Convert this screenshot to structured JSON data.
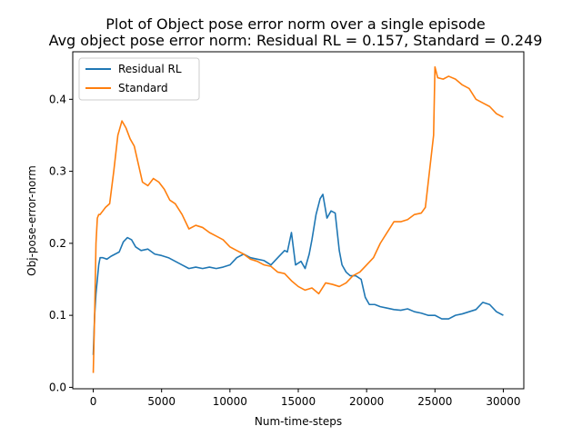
{
  "chart_data": {
    "type": "line",
    "title": "Plot of Object pose error norm over a single episode",
    "subtitle": "Avg object pose error norm: Residual RL = 0.157, Standard = 0.249",
    "xlabel": "Num-time-steps",
    "ylabel": "Obj-pose-error-norm",
    "xlim": [
      -1500,
      31500
    ],
    "ylim": [
      -0.002,
      0.466
    ],
    "xticks": [
      0,
      5000,
      10000,
      15000,
      20000,
      25000,
      30000
    ],
    "yticks": [
      0.0,
      0.1,
      0.2,
      0.3,
      0.4
    ],
    "ytick_labels": [
      "0.0",
      "0.1",
      "0.2",
      "0.3",
      "0.4"
    ],
    "grid": false,
    "legend_position": "top-left",
    "series": [
      {
        "name": "Residual RL",
        "color": "#1f77b4",
        "x": [
          0,
          100,
          200,
          300,
          400,
          500,
          700,
          1000,
          1300,
          1600,
          1900,
          2200,
          2500,
          2800,
          3100,
          3500,
          4000,
          4500,
          5000,
          5500,
          6000,
          6500,
          7000,
          7500,
          8000,
          8500,
          9000,
          9500,
          10000,
          10500,
          11000,
          11500,
          12000,
          12500,
          13000,
          13500,
          14000,
          14200,
          14500,
          14800,
          15200,
          15500,
          15800,
          16000,
          16300,
          16600,
          16800,
          17100,
          17400,
          17700,
          18000,
          18200,
          18500,
          18800,
          19200,
          19600,
          19900,
          20200,
          20600,
          21000,
          21500,
          22000,
          22500,
          23000,
          23500,
          24000,
          24500,
          25000,
          25500,
          26000,
          26500,
          27000,
          27500,
          28000,
          28500,
          29000,
          29500,
          30000
        ],
        "y": [
          0.045,
          0.1,
          0.13,
          0.15,
          0.17,
          0.18,
          0.18,
          0.178,
          0.182,
          0.185,
          0.188,
          0.202,
          0.208,
          0.205,
          0.195,
          0.19,
          0.192,
          0.185,
          0.183,
          0.18,
          0.175,
          0.17,
          0.165,
          0.167,
          0.165,
          0.167,
          0.165,
          0.167,
          0.17,
          0.18,
          0.185,
          0.18,
          0.178,
          0.176,
          0.17,
          0.18,
          0.19,
          0.188,
          0.215,
          0.17,
          0.175,
          0.165,
          0.185,
          0.205,
          0.24,
          0.262,
          0.268,
          0.235,
          0.245,
          0.242,
          0.19,
          0.17,
          0.16,
          0.155,
          0.155,
          0.15,
          0.125,
          0.115,
          0.115,
          0.112,
          0.11,
          0.108,
          0.107,
          0.109,
          0.105,
          0.103,
          0.1,
          0.1,
          0.095,
          0.095,
          0.1,
          0.102,
          0.105,
          0.108,
          0.118,
          0.115,
          0.105,
          0.1
        ]
      },
      {
        "name": "Standard",
        "color": "#ff7f0e",
        "x": [
          0,
          100,
          200,
          300,
          400,
          500,
          700,
          900,
          1200,
          1500,
          1800,
          2100,
          2400,
          2700,
          3000,
          3300,
          3600,
          4000,
          4400,
          4800,
          5200,
          5600,
          6000,
          6500,
          7000,
          7500,
          8000,
          8500,
          9000,
          9500,
          10000,
          10500,
          11000,
          11500,
          12000,
          12500,
          13000,
          13500,
          14000,
          14500,
          15000,
          15500,
          16000,
          16500,
          17000,
          17500,
          18000,
          18500,
          19000,
          19500,
          20000,
          20500,
          21000,
          21500,
          22000,
          22500,
          23000,
          23500,
          24000,
          24300,
          24600,
          24900,
          25000,
          25200,
          25600,
          26000,
          26500,
          27000,
          27500,
          28000,
          28500,
          29000,
          29500,
          30000
        ],
        "y": [
          0.02,
          0.1,
          0.2,
          0.235,
          0.24,
          0.24,
          0.245,
          0.25,
          0.255,
          0.3,
          0.35,
          0.37,
          0.36,
          0.345,
          0.335,
          0.31,
          0.285,
          0.28,
          0.29,
          0.285,
          0.275,
          0.26,
          0.255,
          0.24,
          0.22,
          0.225,
          0.222,
          0.215,
          0.21,
          0.205,
          0.195,
          0.19,
          0.185,
          0.178,
          0.175,
          0.17,
          0.168,
          0.16,
          0.158,
          0.148,
          0.14,
          0.135,
          0.138,
          0.13,
          0.145,
          0.143,
          0.14,
          0.145,
          0.155,
          0.16,
          0.17,
          0.18,
          0.2,
          0.215,
          0.23,
          0.23,
          0.233,
          0.24,
          0.242,
          0.25,
          0.3,
          0.35,
          0.445,
          0.43,
          0.428,
          0.432,
          0.428,
          0.42,
          0.415,
          0.4,
          0.395,
          0.39,
          0.38,
          0.375
        ]
      }
    ]
  }
}
